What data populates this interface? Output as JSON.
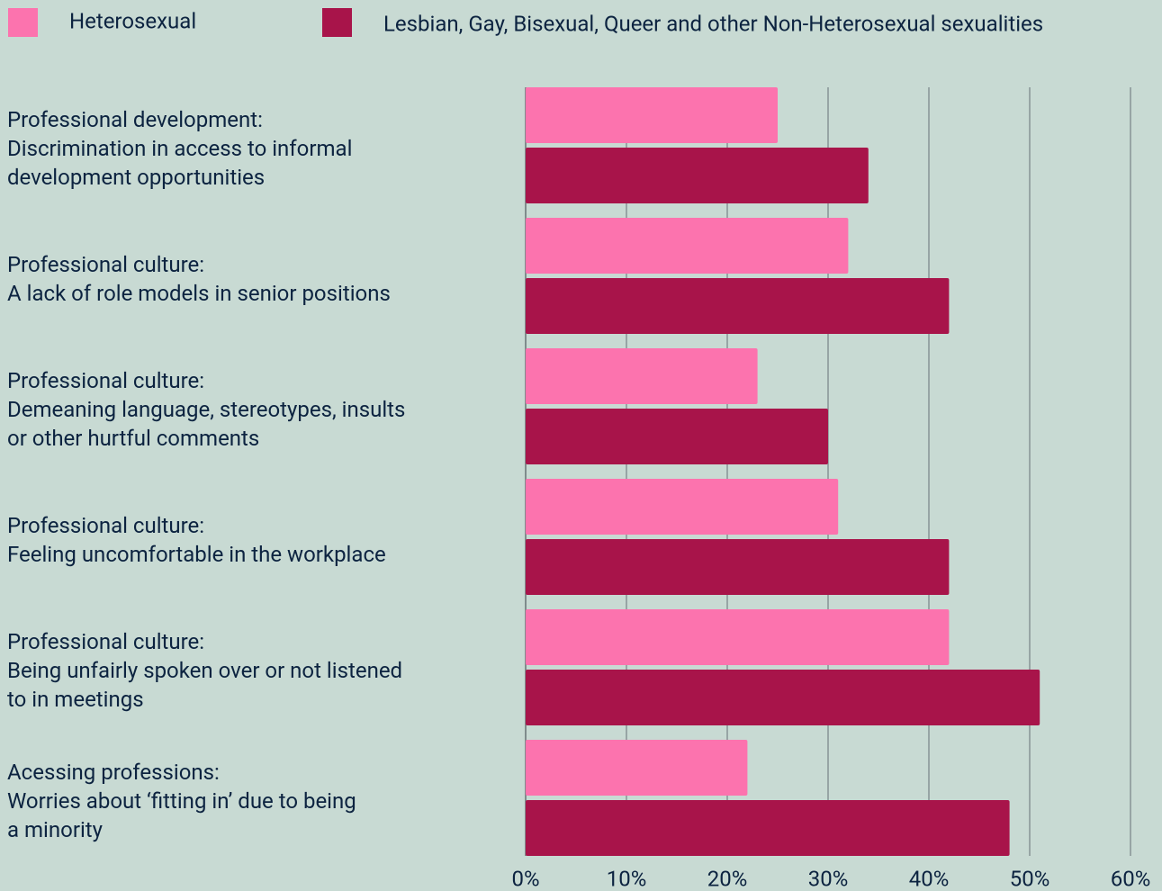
{
  "chart_data": {
    "type": "bar",
    "orientation": "horizontal",
    "categories": [
      "Professional development:\nDiscrimination in access to informal\ndevelopment opportunities",
      "Professional culture:\nA lack of role models in senior positions",
      "Professional culture:\nDemeaning language, stereotypes, insults\nor other hurtful comments",
      "Professional culture:\nFeeling uncomfortable in the workplace",
      "Professional culture:\nBeing unfairly spoken over or not listened\nto in meetings",
      "Acessing professions:\nWorries about ‘fitting in’ due to being\na minority"
    ],
    "series": [
      {
        "name": "Heterosexual",
        "color": "#fc73ae",
        "values": [
          25,
          32,
          23,
          31,
          42,
          22
        ]
      },
      {
        "name": "Lesbian, Gay, Bisexual, Queer and other Non-Heterosexual sexualities",
        "color": "#a8144a",
        "values": [
          34,
          42,
          30,
          42,
          51,
          48
        ]
      }
    ],
    "xlim": [
      0,
      60
    ],
    "xticks": [
      {
        "value": 0,
        "label": "0%"
      },
      {
        "value": 10,
        "label": "10%"
      },
      {
        "value": 20,
        "label": "20%"
      },
      {
        "value": 30,
        "label": "30%"
      },
      {
        "value": 40,
        "label": "40%"
      },
      {
        "value": 50,
        "label": "50%"
      },
      {
        "value": 60,
        "label": "60%"
      }
    ],
    "grid": true,
    "legend": "top"
  }
}
